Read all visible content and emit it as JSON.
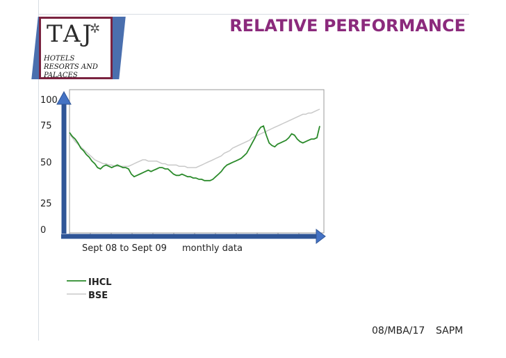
{
  "header": {
    "title": "RELATIVE PERFORMANCE"
  },
  "logo": {
    "brand": "TAJ",
    "subtitle": "HOTELS RESORTS AND PALACES"
  },
  "chart_data": {
    "type": "line",
    "ylim": [
      0,
      100
    ],
    "yticks": [
      "100",
      "75",
      "50",
      "25",
      "0"
    ],
    "xlabels": [
      "Sept 08 to Sept 09",
      "monthly data"
    ],
    "legend_position": "bottom-left",
    "grid": false,
    "n_points": 90,
    "series": [
      {
        "name": "IHCL",
        "color": "#2a8a2a",
        "values": [
          74,
          71,
          69,
          66,
          62,
          60,
          57,
          55,
          52,
          50,
          47,
          46,
          48,
          49,
          48,
          47,
          48,
          49,
          48,
          47,
          47,
          46,
          42,
          40,
          41,
          42,
          43,
          44,
          45,
          44,
          45,
          46,
          47,
          47,
          46,
          46,
          44,
          42,
          41,
          41,
          42,
          41,
          40,
          40,
          39,
          39,
          38,
          38,
          37,
          37,
          37,
          38,
          40,
          42,
          44,
          47,
          49,
          50,
          51,
          52,
          53,
          54,
          56,
          58,
          62,
          66,
          70,
          75,
          78,
          79,
          72,
          66,
          64,
          63,
          65,
          66,
          67,
          68,
          70,
          73,
          72,
          69,
          67,
          66,
          67,
          68,
          69,
          69,
          70,
          79
        ]
      },
      {
        "name": "BSE",
        "color": "#c9c9c9",
        "values": [
          73,
          70,
          67,
          65,
          63,
          61,
          59,
          57,
          55,
          53,
          52,
          51,
          50,
          50,
          49,
          49,
          48,
          48,
          48,
          48,
          48,
          48,
          49,
          50,
          51,
          52,
          53,
          53,
          52,
          52,
          52,
          52,
          51,
          50,
          50,
          49,
          49,
          49,
          49,
          48,
          48,
          48,
          47,
          47,
          47,
          47,
          48,
          49,
          50,
          51,
          52,
          53,
          54,
          55,
          56,
          58,
          59,
          60,
          62,
          63,
          64,
          65,
          66,
          67,
          68,
          70,
          71,
          72,
          73,
          74,
          75,
          76,
          77,
          78,
          79,
          80,
          81,
          82,
          83,
          84,
          85,
          86,
          87,
          88,
          88,
          89,
          89,
          90,
          91,
          92
        ]
      }
    ]
  },
  "footer": {
    "code": "08/MBA/17",
    "course": "SAPM"
  }
}
